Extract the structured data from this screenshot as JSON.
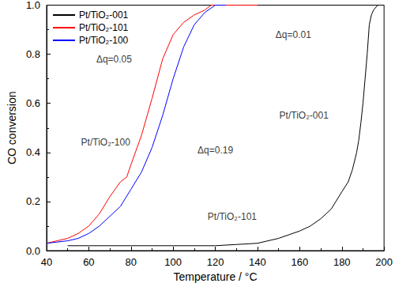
{
  "chart_data": {
    "type": "line",
    "x_label": "Temperature / °C",
    "y_label": "CO conversion",
    "xlim": [
      40,
      200
    ],
    "xticks": [
      40,
      60,
      80,
      100,
      120,
      140,
      160,
      180,
      200
    ],
    "ylim": [
      0,
      1
    ],
    "yticks": [
      {
        "value": 0,
        "label": "0.0"
      },
      0.2,
      0.4,
      0.6,
      0.8,
      {
        "value": 1,
        "label": "1.0"
      }
    ],
    "grid": false,
    "legend": "upper left",
    "series": [
      {
        "name": "Pt/TiO₂-001",
        "color": "#000000",
        "x": [
          50,
          60,
          70,
          80,
          90,
          100,
          110,
          120,
          130,
          140,
          150,
          160,
          165,
          170,
          175,
          180,
          183,
          185,
          187,
          188,
          189,
          190,
          191,
          192,
          193,
          194,
          195,
          197,
          200
        ],
        "values": [
          0.02,
          0.02,
          0.02,
          0.02,
          0.02,
          0.02,
          0.02,
          0.02,
          0.025,
          0.03,
          0.05,
          0.08,
          0.1,
          0.13,
          0.17,
          0.24,
          0.28,
          0.33,
          0.4,
          0.45,
          0.52,
          0.6,
          0.7,
          0.8,
          0.92,
          0.96,
          0.98,
          1.0,
          1.0
        ]
      },
      {
        "name": "Pt/TiO₂-101",
        "color": "#ff0000",
        "x": [
          40,
          45,
          50,
          55,
          60,
          65,
          70,
          75,
          78,
          80,
          85,
          90,
          95,
          100,
          105,
          110,
          115,
          118,
          125,
          130,
          140
        ],
        "values": [
          0.03,
          0.04,
          0.05,
          0.07,
          0.1,
          0.15,
          0.22,
          0.28,
          0.3,
          0.35,
          0.47,
          0.62,
          0.78,
          0.88,
          0.93,
          0.96,
          0.98,
          1.0,
          1.0,
          1.0,
          1.0
        ]
      },
      {
        "name": "Pt/TiO₂-100",
        "color": "#0000ff",
        "x": [
          40,
          45,
          50,
          55,
          60,
          65,
          70,
          75,
          80,
          85,
          90,
          95,
          100,
          105,
          110,
          115,
          120,
          125
        ],
        "values": [
          0.03,
          0.035,
          0.04,
          0.05,
          0.07,
          0.1,
          0.14,
          0.18,
          0.25,
          0.32,
          0.42,
          0.55,
          0.7,
          0.83,
          0.92,
          0.97,
          1.0,
          1.0
        ]
      }
    ],
    "annotations": [
      {
        "text": "Δq=0.05",
        "x": 72,
        "y": 0.78
      },
      {
        "text": "Pt/TiO₂-100",
        "x": 68,
        "y": 0.44
      },
      {
        "text": "Δq=0.19",
        "x": 120,
        "y": 0.41
      },
      {
        "text": "Pt/TiO₂-101",
        "x": 128,
        "y": 0.14
      },
      {
        "text": "Δq=0.01",
        "x": 157,
        "y": 0.88
      },
      {
        "text": "Pt/TiO₂-001",
        "x": 162,
        "y": 0.55
      }
    ]
  }
}
